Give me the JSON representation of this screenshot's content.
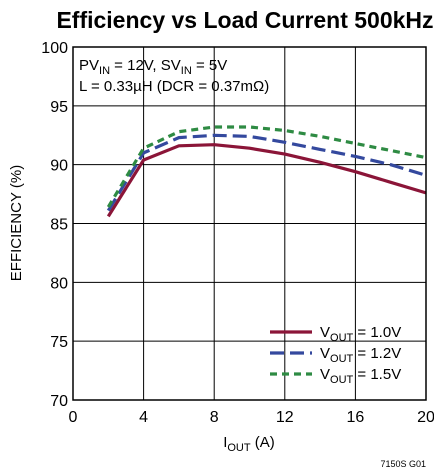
{
  "chart_data": {
    "type": "line",
    "title": "Efficiency vs Load Current 500kHz",
    "xlabel": {
      "main": "I",
      "sub": "OUT",
      "rest": " (A)"
    },
    "ylabel": "EFFICIENCY (%)",
    "xlim": [
      0,
      20
    ],
    "ylim": [
      70,
      100
    ],
    "xticks": [
      0,
      4,
      8,
      12,
      16,
      20
    ],
    "yticks": [
      70,
      75,
      80,
      85,
      90,
      95,
      100
    ],
    "grid": true,
    "annotation": {
      "line1": {
        "a": "PV",
        "a_sub": "IN",
        "b": " = 12V, SV",
        "b_sub": "IN",
        "c": " = 5V"
      },
      "line2": "L = 0.33µH (DCR = 0.37mΩ)"
    },
    "legend_position": "bottom-right",
    "series": [
      {
        "label_main": "V",
        "label_sub": "OUT",
        "label_rest": " = 1.0V",
        "color": "#8b1538",
        "dash": "solid",
        "x": [
          2,
          4,
          6,
          8,
          10,
          12,
          14,
          16,
          18,
          20
        ],
        "y": [
          85.6,
          90.4,
          91.6,
          91.7,
          91.4,
          90.9,
          90.2,
          89.4,
          88.5,
          87.6
        ]
      },
      {
        "label_main": "V",
        "label_sub": "OUT",
        "label_rest": " = 1.2V",
        "color": "#34499e",
        "dash": "dashed",
        "x": [
          2,
          4,
          6,
          8,
          10,
          12,
          14,
          16,
          18,
          20
        ],
        "y": [
          86.1,
          91.0,
          92.3,
          92.5,
          92.4,
          91.9,
          91.3,
          90.7,
          90.0,
          89.1
        ]
      },
      {
        "label_main": "V",
        "label_sub": "OUT",
        "label_rest": " = 1.5V",
        "color": "#2e8b43",
        "dash": "short-dashed",
        "x": [
          2,
          4,
          6,
          8,
          10,
          12,
          14,
          16,
          18,
          20
        ],
        "y": [
          86.4,
          91.4,
          92.8,
          93.2,
          93.2,
          92.9,
          92.4,
          91.8,
          91.2,
          90.6
        ]
      }
    ]
  },
  "figure_id": "7150S G01"
}
